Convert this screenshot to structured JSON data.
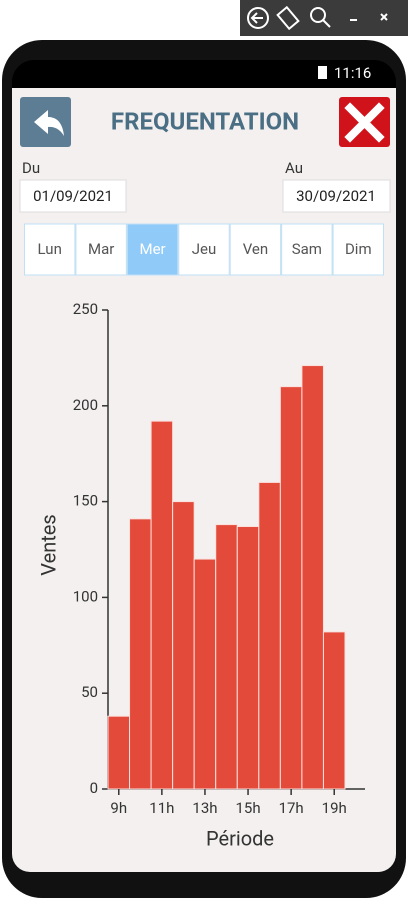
{
  "status_bar": {
    "time": "11:16"
  },
  "header": {
    "title": "FREQUENTATION"
  },
  "date_from": {
    "label": "Du",
    "value": "01/09/2021"
  },
  "date_to": {
    "label": "Au",
    "value": "30/09/2021"
  },
  "days": [
    "Lun",
    "Mar",
    "Mer",
    "Jeu",
    "Ven",
    "Sam",
    "Dim"
  ],
  "selected_day": 2,
  "chart_data": {
    "type": "bar",
    "x_label": "Période",
    "y_label": "Ventes",
    "categories": [
      "9h",
      null,
      "11h",
      null,
      "13h",
      null,
      "15h",
      null,
      "17h",
      null,
      "19h"
    ],
    "values": [
      38,
      141,
      192,
      150,
      120,
      138,
      137,
      160,
      210,
      221,
      82
    ],
    "color": "#e34a3a",
    "ylim": [
      0,
      250
    ],
    "yticks": [
      0,
      50,
      100,
      150,
      200,
      250
    ]
  }
}
